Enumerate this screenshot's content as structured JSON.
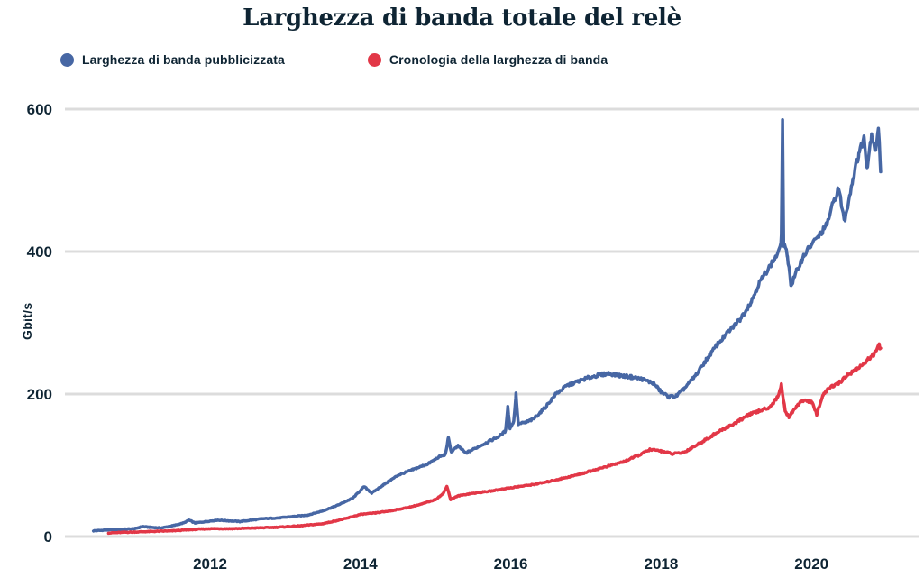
{
  "title": "Larghezza di banda totale del relè",
  "legend": [
    {
      "label": "Larghezza di banda pubblicizzata",
      "color": "#4767a4"
    },
    {
      "label": "Cronologia della larghezza di banda",
      "color": "#e23747"
    }
  ],
  "colors": {
    "text": "#0e2433",
    "grid": "#dcdcdc",
    "background": "#ffffff",
    "advertised_line": "#4767a4",
    "history_line": "#e23747"
  },
  "chart_data": {
    "type": "line",
    "title": "Larghezza di banda totale del relè",
    "xlabel": "",
    "ylabel": "Gbit/s",
    "unit": "Gbit/s",
    "ylim": [
      0,
      600
    ],
    "yticks": [
      0,
      200,
      400,
      600
    ],
    "ytick_labels": [
      "0",
      "200",
      "400",
      "600"
    ],
    "xticks": [
      2012,
      2014,
      2016,
      2018,
      2020
    ],
    "xtick_labels": [
      "2012",
      "2014",
      "2016",
      "2018",
      "2020"
    ],
    "x_range": [
      2010.4,
      2020.95
    ],
    "grid": "horizontal-only",
    "legend_position": "top-left",
    "series": [
      {
        "id": "advertised-bandwidth",
        "name": "Larghezza di banda pubblicizzata",
        "color": "#4767a4",
        "points": [
          [
            2010.45,
            8
          ],
          [
            2010.6,
            9
          ],
          [
            2010.8,
            10
          ],
          [
            2011.0,
            11
          ],
          [
            2011.1,
            14
          ],
          [
            2011.2,
            13
          ],
          [
            2011.35,
            12
          ],
          [
            2011.5,
            15
          ],
          [
            2011.65,
            19
          ],
          [
            2011.72,
            23
          ],
          [
            2011.8,
            19
          ],
          [
            2011.95,
            21
          ],
          [
            2012.1,
            23
          ],
          [
            2012.25,
            22
          ],
          [
            2012.4,
            21
          ],
          [
            2012.55,
            23
          ],
          [
            2012.7,
            25
          ],
          [
            2012.9,
            26
          ],
          [
            2013.1,
            28
          ],
          [
            2013.3,
            30
          ],
          [
            2013.5,
            36
          ],
          [
            2013.7,
            44
          ],
          [
            2013.9,
            54
          ],
          [
            2014.05,
            70
          ],
          [
            2014.15,
            61
          ],
          [
            2014.3,
            72
          ],
          [
            2014.5,
            86
          ],
          [
            2014.7,
            94
          ],
          [
            2014.9,
            102
          ],
          [
            2015.05,
            112
          ],
          [
            2015.13,
            115
          ],
          [
            2015.17,
            138
          ],
          [
            2015.21,
            119
          ],
          [
            2015.3,
            127
          ],
          [
            2015.4,
            117
          ],
          [
            2015.55,
            125
          ],
          [
            2015.7,
            133
          ],
          [
            2015.85,
            141
          ],
          [
            2015.93,
            148
          ],
          [
            2015.96,
            182
          ],
          [
            2015.99,
            152
          ],
          [
            2016.04,
            162
          ],
          [
            2016.07,
            200
          ],
          [
            2016.1,
            158
          ],
          [
            2016.2,
            160
          ],
          [
            2016.3,
            165
          ],
          [
            2016.45,
            180
          ],
          [
            2016.6,
            200
          ],
          [
            2016.75,
            212
          ],
          [
            2016.9,
            218
          ],
          [
            2017.0,
            222
          ],
          [
            2017.15,
            226
          ],
          [
            2017.3,
            229
          ],
          [
            2017.45,
            226
          ],
          [
            2017.6,
            224
          ],
          [
            2017.75,
            221
          ],
          [
            2017.9,
            215
          ],
          [
            2018.0,
            203
          ],
          [
            2018.1,
            196
          ],
          [
            2018.2,
            197
          ],
          [
            2018.3,
            207
          ],
          [
            2018.45,
            225
          ],
          [
            2018.6,
            248
          ],
          [
            2018.75,
            270
          ],
          [
            2018.9,
            288
          ],
          [
            2019.05,
            305
          ],
          [
            2019.2,
            330
          ],
          [
            2019.3,
            355
          ],
          [
            2019.4,
            372
          ],
          [
            2019.5,
            388
          ],
          [
            2019.57,
            400
          ],
          [
            2019.6,
            420
          ],
          [
            2019.615,
            585
          ],
          [
            2019.63,
            410
          ],
          [
            2019.68,
            395
          ],
          [
            2019.73,
            352
          ],
          [
            2019.8,
            372
          ],
          [
            2019.9,
            395
          ],
          [
            2020.0,
            410
          ],
          [
            2020.1,
            422
          ],
          [
            2020.2,
            437
          ],
          [
            2020.3,
            472
          ],
          [
            2020.36,
            488
          ],
          [
            2020.44,
            443
          ],
          [
            2020.55,
            502
          ],
          [
            2020.63,
            538
          ],
          [
            2020.7,
            560
          ],
          [
            2020.74,
            518
          ],
          [
            2020.8,
            566
          ],
          [
            2020.85,
            542
          ],
          [
            2020.89,
            572
          ],
          [
            2020.92,
            516
          ]
        ]
      },
      {
        "id": "bandwidth-history",
        "name": "Cronologia della larghezza di banda",
        "color": "#e23747",
        "points": [
          [
            2010.65,
            5
          ],
          [
            2010.9,
            6
          ],
          [
            2011.2,
            7
          ],
          [
            2011.5,
            8
          ],
          [
            2011.8,
            10
          ],
          [
            2012.0,
            11
          ],
          [
            2012.3,
            11
          ],
          [
            2012.6,
            12
          ],
          [
            2012.9,
            13
          ],
          [
            2013.2,
            15
          ],
          [
            2013.5,
            18
          ],
          [
            2013.8,
            25
          ],
          [
            2014.0,
            31
          ],
          [
            2014.2,
            33
          ],
          [
            2014.4,
            36
          ],
          [
            2014.6,
            40
          ],
          [
            2014.8,
            45
          ],
          [
            2015.0,
            52
          ],
          [
            2015.1,
            60
          ],
          [
            2015.15,
            71
          ],
          [
            2015.2,
            52
          ],
          [
            2015.3,
            57
          ],
          [
            2015.45,
            60
          ],
          [
            2015.6,
            62
          ],
          [
            2015.75,
            64
          ],
          [
            2015.9,
            67
          ],
          [
            2016.1,
            70
          ],
          [
            2016.3,
            73
          ],
          [
            2016.5,
            77
          ],
          [
            2016.7,
            82
          ],
          [
            2016.9,
            87
          ],
          [
            2017.1,
            93
          ],
          [
            2017.3,
            99
          ],
          [
            2017.5,
            105
          ],
          [
            2017.7,
            114
          ],
          [
            2017.85,
            122
          ],
          [
            2018.0,
            120
          ],
          [
            2018.15,
            116
          ],
          [
            2018.3,
            118
          ],
          [
            2018.5,
            130
          ],
          [
            2018.7,
            143
          ],
          [
            2018.85,
            152
          ],
          [
            2019.0,
            160
          ],
          [
            2019.15,
            170
          ],
          [
            2019.3,
            176
          ],
          [
            2019.45,
            182
          ],
          [
            2019.55,
            196
          ],
          [
            2019.6,
            213
          ],
          [
            2019.65,
            175
          ],
          [
            2019.7,
            168
          ],
          [
            2019.8,
            183
          ],
          [
            2019.9,
            192
          ],
          [
            2020.0,
            189
          ],
          [
            2020.07,
            172
          ],
          [
            2020.15,
            198
          ],
          [
            2020.25,
            210
          ],
          [
            2020.35,
            214
          ],
          [
            2020.45,
            224
          ],
          [
            2020.55,
            232
          ],
          [
            2020.65,
            239
          ],
          [
            2020.75,
            248
          ],
          [
            2020.85,
            258
          ],
          [
            2020.9,
            268
          ],
          [
            2020.92,
            262
          ]
        ]
      }
    ]
  }
}
